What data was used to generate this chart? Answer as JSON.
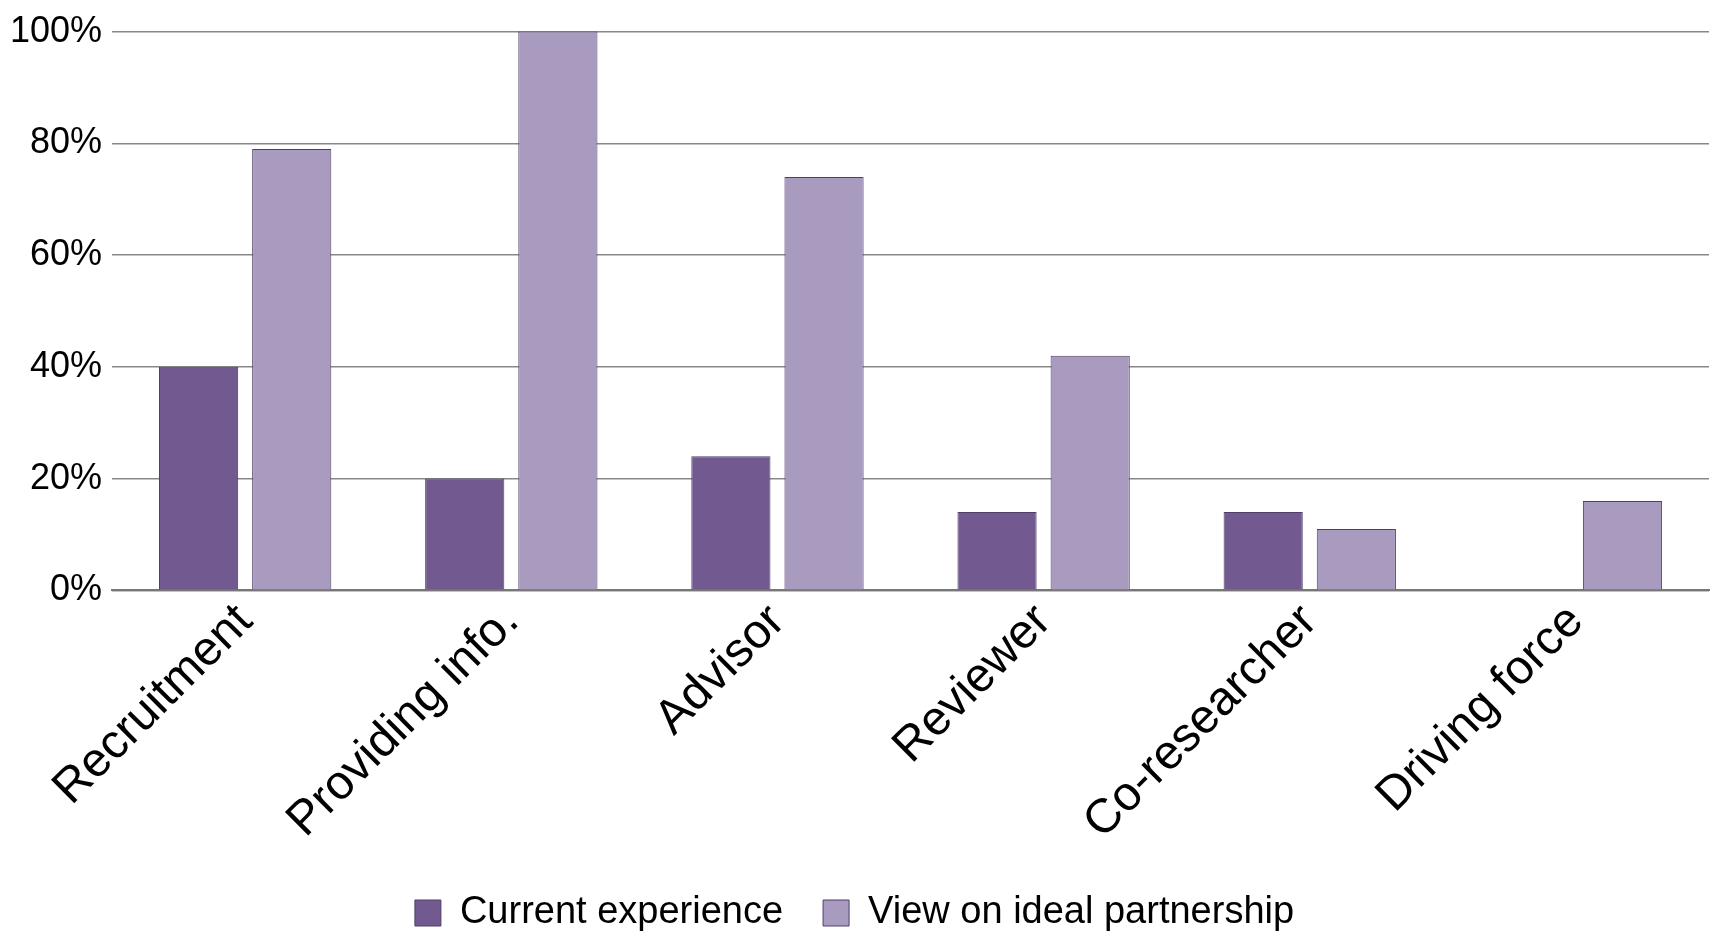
{
  "chart_data": {
    "type": "bar",
    "categories": [
      "Recruitment",
      "Providing info.",
      "Advisor",
      "Reviewer",
      "Co-researcher",
      "Driving force"
    ],
    "series": [
      {
        "name": "Current experience",
        "color": "#72598f",
        "values": [
          40,
          20,
          24,
          14,
          14,
          0
        ]
      },
      {
        "name": "View on ideal partnership",
        "color": "#a89bbf",
        "values": [
          79,
          100,
          74,
          42,
          11,
          16
        ]
      }
    ],
    "ylim": [
      0,
      100
    ],
    "yticks": [
      {
        "value": 0,
        "label": "0%"
      },
      {
        "value": 20,
        "label": "20%"
      },
      {
        "value": 40,
        "label": "40%"
      },
      {
        "value": 60,
        "label": "60%"
      },
      {
        "value": 80,
        "label": "80%"
      },
      {
        "value": 100,
        "label": "100%"
      }
    ],
    "grid": "y",
    "legend": "bottom"
  }
}
